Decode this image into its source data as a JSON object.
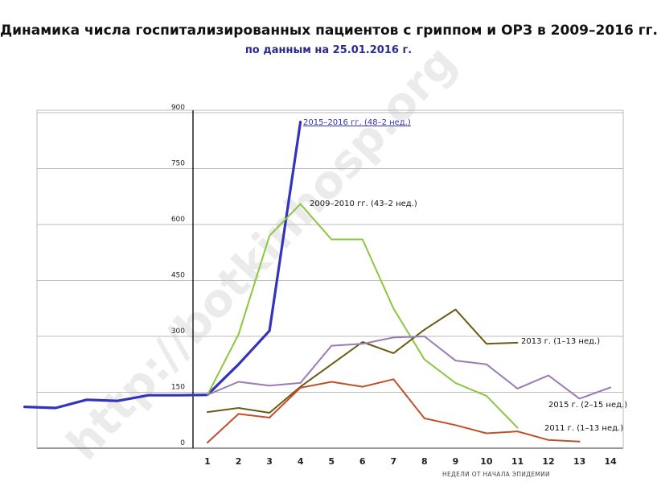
{
  "watermark": "http://botkinhosp.org",
  "chart_data": {
    "type": "line",
    "title": "Динамика числа госпитализированных пациентов с гриппом и ОРЗ в 2009–2016 гг.",
    "subtitle": "по данным на 25.01.2016 г.",
    "xlabel": "НЕДЕЛИ ОТ НАЧАЛА ЭПИДЕМИИ",
    "ylabel": "",
    "x_ticks": [
      "1",
      "2",
      "3",
      "4",
      "5",
      "6",
      "7",
      "8",
      "9",
      "10",
      "11",
      "12",
      "13",
      "14"
    ],
    "y_ticks": [
      "0",
      "150",
      "300",
      "450",
      "600",
      "750",
      "900"
    ],
    "ylim": [
      0,
      900
    ],
    "xlim": [
      -4.9,
      14.4
    ],
    "grid": true,
    "series": [
      {
        "name": "2015–2016 гг. (48–2 нед.)",
        "color": "#3333bb",
        "width": 3.2,
        "underline_label": true,
        "x": [
          -4.9,
          -3.9,
          -2.9,
          -1.9,
          -0.9,
          0.1,
          1,
          2,
          3,
          4
        ],
        "y": [
          111,
          108,
          130,
          127,
          142,
          142,
          143,
          225,
          315,
          875
        ]
      },
      {
        "name": "2009–2010 гг. (43–2 нед.)",
        "color": "#8cc63f",
        "width": 2,
        "x": [
          1,
          2,
          3,
          4,
          5,
          6,
          7,
          8,
          9,
          10,
          11
        ],
        "y": [
          143,
          305,
          570,
          655,
          560,
          560,
          375,
          238,
          175,
          140,
          55
        ]
      },
      {
        "name": "2013 г. (1–13 нед.)",
        "color": "#6b5b12",
        "width": 2,
        "x": [
          1,
          2,
          3,
          4,
          5,
          6,
          7,
          8,
          9,
          10,
          11
        ],
        "y": [
          97,
          108,
          95,
          165,
          225,
          285,
          255,
          318,
          372,
          280,
          283
        ]
      },
      {
        "name": "2015 г. (2–15 нед.)",
        "color": "#9b7bb5",
        "width": 2,
        "x": [
          1,
          2,
          3,
          4,
          5,
          6,
          7,
          8,
          9,
          10,
          11,
          12,
          13,
          14
        ],
        "y": [
          143,
          178,
          168,
          175,
          275,
          280,
          297,
          300,
          235,
          225,
          160,
          195,
          133,
          163
        ]
      },
      {
        "name": "2011 г. (1–13 нед.)",
        "color": "#c0502a",
        "width": 2,
        "x": [
          1,
          2,
          3,
          4,
          5,
          6,
          7,
          8,
          9,
          10,
          11,
          12,
          13
        ],
        "y": [
          15,
          92,
          82,
          162,
          178,
          165,
          185,
          80,
          62,
          40,
          45,
          22,
          18
        ]
      }
    ]
  }
}
